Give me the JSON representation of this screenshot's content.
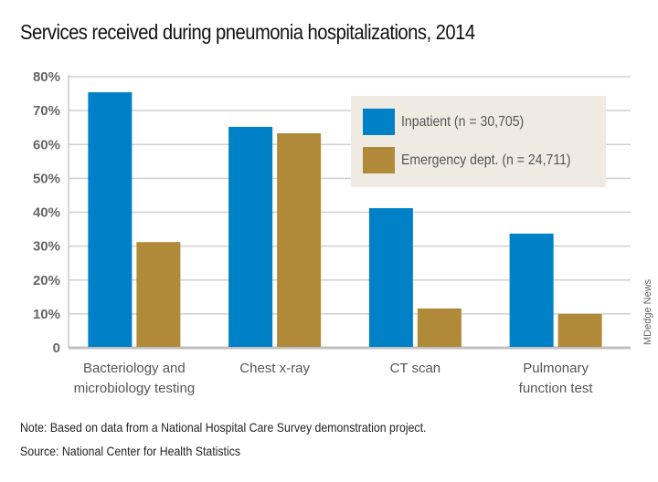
{
  "chart_data": {
    "type": "bar",
    "title": "Services received during pneumonia hospitalizations, 2014",
    "categories": [
      "Bacteriology and microbiology testing",
      "Chest x-ray",
      "CT scan",
      "Pulmonary function test"
    ],
    "category_lines": [
      [
        "Bacteriology and",
        "microbiology testing"
      ],
      [
        "Chest x-ray"
      ],
      [
        "CT scan"
      ],
      [
        "Pulmonary",
        "function test"
      ]
    ],
    "series": [
      {
        "name": "Inpatient (n = 30,705)",
        "color": "#0080c6",
        "values": [
          75.4,
          65.2,
          41.2,
          33.7
        ]
      },
      {
        "name": "Emergency dept. (n = 24,711)",
        "color": "#b08a38",
        "values": [
          31.2,
          63.3,
          11.6,
          10.0
        ]
      }
    ],
    "yticks": [
      "0",
      "10%",
      "20%",
      "30%",
      "40%",
      "50%",
      "60%",
      "70%",
      "80%"
    ],
    "ylim": [
      0,
      80
    ],
    "xlabel": "",
    "ylabel": "",
    "grid": true,
    "legend_position": "top-right"
  },
  "footer": {
    "note_label": "Note:",
    "note_text": " Based on data from a National Hospital Care Survey demonstration project.",
    "source_label": "Source:",
    "source_text": " National Center for Health Statistics"
  },
  "credit": "MDedge News"
}
